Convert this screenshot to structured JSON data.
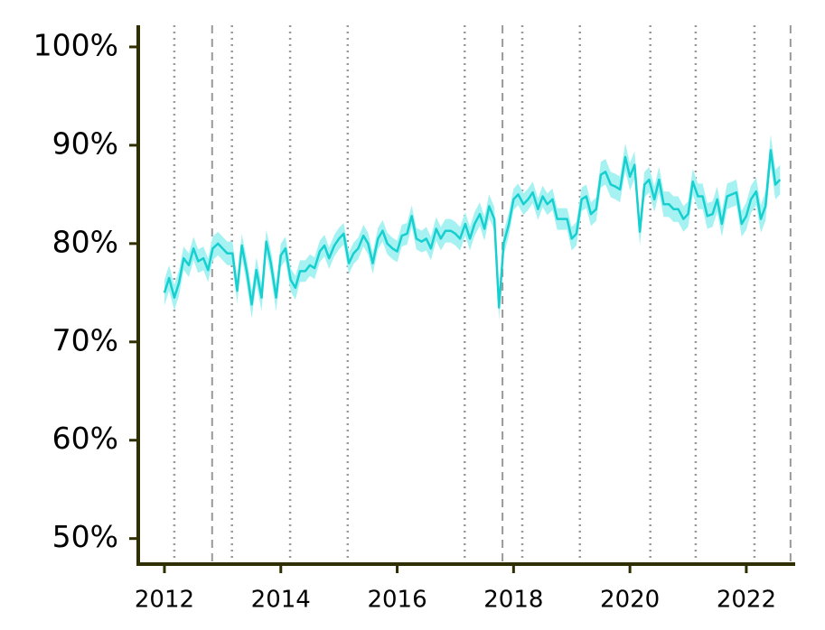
{
  "chart_data": {
    "type": "line",
    "x": [
      2012.0,
      2012.08,
      2012.17,
      2012.25,
      2012.33,
      2012.42,
      2012.5,
      2012.58,
      2012.67,
      2012.75,
      2012.83,
      2012.92,
      2013.0,
      2013.08,
      2013.17,
      2013.25,
      2013.33,
      2013.42,
      2013.5,
      2013.58,
      2013.67,
      2013.75,
      2013.83,
      2013.92,
      2014.0,
      2014.08,
      2014.17,
      2014.25,
      2014.33,
      2014.42,
      2014.5,
      2014.58,
      2014.67,
      2014.75,
      2014.83,
      2014.92,
      2015.0,
      2015.08,
      2015.17,
      2015.25,
      2015.33,
      2015.42,
      2015.5,
      2015.58,
      2015.67,
      2015.75,
      2015.83,
      2015.92,
      2016.0,
      2016.08,
      2016.17,
      2016.25,
      2016.33,
      2016.42,
      2016.5,
      2016.58,
      2016.67,
      2016.75,
      2016.83,
      2016.92,
      2017.0,
      2017.08,
      2017.17,
      2017.25,
      2017.33,
      2017.42,
      2017.5,
      2017.58,
      2017.67,
      2017.75,
      2017.83,
      2017.92,
      2018.0,
      2018.08,
      2018.17,
      2018.25,
      2018.33,
      2018.42,
      2018.5,
      2018.58,
      2018.67,
      2018.75,
      2018.83,
      2018.92,
      2019.0,
      2019.08,
      2019.17,
      2019.25,
      2019.33,
      2019.42,
      2019.5,
      2019.58,
      2019.67,
      2019.75,
      2019.83,
      2019.92,
      2020.0,
      2020.08,
      2020.17,
      2020.25,
      2020.33,
      2020.42,
      2020.5,
      2020.58,
      2020.67,
      2020.75,
      2020.83,
      2020.92,
      2021.0,
      2021.08,
      2021.17,
      2021.25,
      2021.33,
      2021.42,
      2021.5,
      2021.58,
      2021.67,
      2021.75,
      2021.83,
      2021.92,
      2022.0,
      2022.08,
      2022.17,
      2022.25,
      2022.33,
      2022.42,
      2022.5,
      2022.58
    ],
    "series": [
      {
        "color": "#17cfcf",
        "band_color": "#a6f2f2",
        "values": [
          75.0,
          76.5,
          74.5,
          76.0,
          78.5,
          77.8,
          79.5,
          78.2,
          78.5,
          77.3,
          79.5,
          80.0,
          79.5,
          79.0,
          79.0,
          75.2,
          79.8,
          77.0,
          73.8,
          77.3,
          74.5,
          80.2,
          78.0,
          74.5,
          78.8,
          79.5,
          76.3,
          75.5,
          77.2,
          77.2,
          77.8,
          77.5,
          79.2,
          79.8,
          78.5,
          79.8,
          80.5,
          81.0,
          78.0,
          79.0,
          79.5,
          80.8,
          80.0,
          78.0,
          80.5,
          81.3,
          80.0,
          79.5,
          79.2,
          80.8,
          81.0,
          82.8,
          80.5,
          80.2,
          80.5,
          79.5,
          81.5,
          80.5,
          81.3,
          81.3,
          81.0,
          80.5,
          82.0,
          80.5,
          82.0,
          83.0,
          81.5,
          83.8,
          82.5,
          73.5,
          80.0,
          82.0,
          84.5,
          85.0,
          84.0,
          84.5,
          85.2,
          83.5,
          84.8,
          84.0,
          84.5,
          82.5,
          82.5,
          82.5,
          80.5,
          81.0,
          84.5,
          84.8,
          83.0,
          83.5,
          87.0,
          87.3,
          86.0,
          85.8,
          85.5,
          88.8,
          86.8,
          88.0,
          81.2,
          86.0,
          86.5,
          84.5,
          86.5,
          84.0,
          84.0,
          83.5,
          83.5,
          82.5,
          83.0,
          86.3,
          84.8,
          84.8,
          82.8,
          83.0,
          84.5,
          82.0,
          84.8,
          85.0,
          85.2,
          82.0,
          82.8,
          84.5,
          85.3,
          82.5,
          83.8,
          89.5,
          86.0,
          86.5
        ],
        "errors": [
          1.3,
          1.3,
          1.3,
          1.3,
          1.2,
          1.2,
          1.2,
          1.2,
          1.2,
          1.2,
          1.2,
          1.2,
          1.2,
          1.2,
          1.2,
          1.3,
          1.2,
          1.3,
          1.4,
          1.3,
          1.4,
          1.2,
          1.3,
          1.4,
          1.2,
          1.2,
          1.2,
          1.2,
          1.1,
          1.1,
          1.1,
          1.1,
          1.1,
          1.1,
          1.1,
          1.1,
          1.1,
          1.1,
          1.1,
          1.1,
          1.1,
          1.1,
          1.1,
          1.1,
          1.1,
          1.1,
          1.1,
          1.1,
          1.1,
          1.1,
          1.1,
          1.1,
          1.1,
          1.1,
          1.2,
          1.2,
          1.2,
          1.2,
          1.2,
          1.2,
          1.2,
          1.2,
          1.2,
          1.2,
          1.2,
          1.2,
          1.2,
          1.2,
          1.2,
          1.3,
          1.2,
          1.2,
          1.1,
          1.1,
          1.1,
          1.1,
          1.1,
          1.1,
          1.1,
          1.1,
          1.1,
          1.1,
          1.1,
          1.1,
          1.2,
          1.2,
          1.2,
          1.2,
          1.2,
          1.2,
          1.3,
          1.3,
          1.3,
          1.3,
          1.3,
          1.4,
          1.4,
          1.4,
          1.4,
          1.3,
          1.3,
          1.3,
          1.3,
          1.3,
          1.3,
          1.3,
          1.3,
          1.3,
          1.3,
          1.3,
          1.3,
          1.3,
          1.3,
          1.3,
          1.3,
          1.3,
          1.3,
          1.3,
          1.3,
          1.3,
          1.4,
          1.4,
          1.4,
          1.4,
          1.5,
          1.6,
          1.5,
          1.5
        ]
      }
    ],
    "xlim": [
      2011.55,
      2022.84
    ],
    "xticks": [
      2012,
      2014,
      2016,
      2018,
      2020,
      2022
    ],
    "ylim": [
      47.4,
      102.2
    ],
    "yticks": [
      {
        "value": 50,
        "label": "50%"
      },
      {
        "value": 60,
        "label": "60%"
      },
      {
        "value": 70,
        "label": "70%"
      },
      {
        "value": 80,
        "label": "80%"
      },
      {
        "value": 90,
        "label": "90%"
      },
      {
        "value": 100,
        "label": "100%"
      }
    ],
    "vlines_dotted": [
      2012.17,
      2013.16,
      2014.16,
      2015.15,
      2017.16,
      2018.15,
      2019.14,
      2020.35,
      2021.13,
      2022.14
    ],
    "vlines_dashed": [
      2012.82,
      2017.81,
      2022.76
    ]
  }
}
